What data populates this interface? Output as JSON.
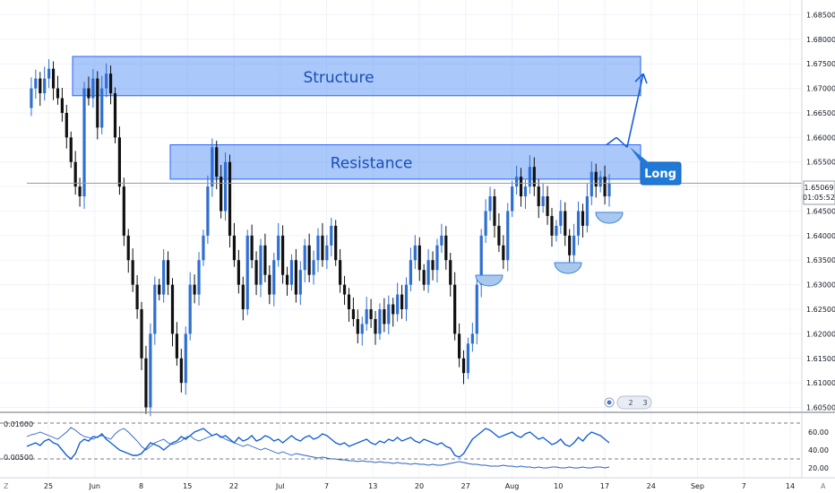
{
  "chart_data": {
    "type": "line",
    "subtype": "candlestick",
    "price_axis": {
      "ticks": [
        "1.68500",
        "1.68000",
        "1.67500",
        "1.67000",
        "1.66500",
        "1.66000",
        "1.65500",
        "1.65000",
        "1.64500",
        "1.64000",
        "1.63500",
        "1.63000",
        "1.62500",
        "1.62000",
        "1.61500",
        "1.61000",
        "1.60500"
      ],
      "range": [
        1.604,
        1.688
      ],
      "current_price": "1.65069",
      "countdown": "01:05:52"
    },
    "time_axis": {
      "ticks": [
        "25",
        "Jun",
        "8",
        "15",
        "22",
        "Jul",
        "7",
        "13",
        "20",
        "27",
        "Aug",
        "10",
        "17",
        "24",
        "Sep",
        "7",
        "14"
      ]
    },
    "zones": [
      {
        "label": "Structure",
        "top": 1.6765,
        "bottom": 1.6685
      },
      {
        "label": "Resistance",
        "top": 1.6585,
        "bottom": 1.6515
      }
    ],
    "callout": {
      "label": "Long"
    },
    "price_path": [
      1.666,
      1.67,
      1.672,
      1.669,
      1.672,
      1.674,
      1.67,
      1.668,
      1.665,
      1.66,
      1.655,
      1.65,
      1.648,
      1.67,
      1.668,
      1.672,
      1.662,
      1.67,
      1.673,
      1.669,
      1.66,
      1.65,
      1.64,
      1.635,
      1.63,
      1.625,
      1.615,
      1.605,
      1.62,
      1.63,
      1.628,
      1.635,
      1.63,
      1.62,
      1.615,
      1.61,
      1.62,
      1.63,
      1.628,
      1.635,
      1.64,
      1.65,
      1.658,
      1.652,
      1.645,
      1.655,
      1.64,
      1.635,
      1.63,
      1.625,
      1.64,
      1.635,
      1.63,
      1.638,
      1.632,
      1.628,
      1.635,
      1.64,
      1.632,
      1.63,
      1.635,
      1.628,
      1.633,
      1.638,
      1.632,
      1.635,
      1.64,
      1.635,
      1.638,
      1.642,
      1.635,
      1.63,
      1.628,
      1.625,
      1.623,
      1.62,
      1.622,
      1.625,
      1.623,
      1.62,
      1.625,
      1.622,
      1.626,
      1.624,
      1.628,
      1.625,
      1.63,
      1.635,
      1.638,
      1.633,
      1.63,
      1.635,
      1.633,
      1.638,
      1.64,
      1.635,
      1.63,
      1.62,
      1.615,
      1.612,
      1.618,
      1.62,
      1.63,
      1.64,
      1.645,
      1.648,
      1.642,
      1.638,
      1.635,
      1.645,
      1.65,
      1.652,
      1.648,
      1.65,
      1.654,
      1.65,
      1.646,
      1.648,
      1.644,
      1.64,
      1.642,
      1.645,
      1.64,
      1.636,
      1.64,
      1.645,
      1.642,
      1.648,
      1.653,
      1.65,
      1.652,
      1.648,
      1.6507
    ],
    "projection": [
      [
        1.6585,
        1.66
      ],
      [
        1.66,
        1.658
      ],
      [
        1.658,
        1.673
      ]
    ],
    "oscillator": {
      "left_ticks": [
        "0.01000",
        "0.00500"
      ],
      "right_ticks": [
        "60.00",
        "40.00",
        "20.00"
      ],
      "levels": [
        70,
        30
      ],
      "range": [
        10,
        80
      ],
      "rsi": [
        44,
        46,
        48,
        45,
        50,
        52,
        48,
        46,
        40,
        34,
        30,
        36,
        48,
        52,
        50,
        55,
        54,
        58,
        52,
        48,
        44,
        40,
        38,
        36,
        34,
        34,
        36,
        42,
        48,
        46,
        44,
        40,
        44,
        48,
        50,
        55,
        52,
        56,
        60,
        62,
        64,
        60,
        56,
        58,
        54,
        56,
        52,
        48,
        54,
        50,
        52,
        56,
        50,
        52,
        56,
        54,
        50,
        52,
        48,
        52,
        56,
        52,
        50,
        54,
        56,
        52,
        54,
        58,
        56,
        52,
        48,
        46,
        48,
        44,
        46,
        48,
        50,
        52,
        48,
        46,
        50,
        48,
        52,
        50,
        54,
        50,
        52,
        54,
        50,
        48,
        52,
        50,
        48,
        46,
        48,
        44,
        42,
        34,
        32,
        36,
        44,
        52,
        56,
        60,
        64,
        62,
        58,
        54,
        56,
        58,
        60,
        56,
        54,
        58,
        60,
        56,
        52,
        54,
        50,
        46,
        48,
        52,
        46,
        44,
        48,
        54,
        50,
        56,
        60,
        58,
        56,
        52,
        48
      ],
      "atr": [
        55,
        57,
        58,
        60,
        58,
        56,
        54,
        52,
        56,
        60,
        65,
        62,
        58,
        55,
        54,
        52,
        55,
        56,
        54,
        52,
        58,
        62,
        64,
        60,
        55,
        50,
        44,
        40,
        44,
        48,
        50,
        52,
        48,
        46,
        48,
        50,
        54,
        56,
        52,
        50,
        52,
        54,
        56,
        58,
        55,
        52,
        50,
        48,
        46,
        44,
        46,
        44,
        42,
        40,
        42,
        40,
        38,
        36,
        38,
        36,
        34,
        36,
        35,
        34,
        33,
        32,
        31,
        32,
        31,
        30,
        30,
        29,
        29,
        28,
        28,
        27,
        28,
        27,
        27,
        26,
        27,
        26,
        26,
        25,
        26,
        25,
        25,
        24,
        25,
        24,
        24,
        23,
        24,
        23,
        23,
        24,
        25,
        26,
        27,
        26,
        25,
        24,
        24,
        23,
        23,
        22,
        22,
        22,
        23,
        22,
        22,
        21,
        22,
        21,
        21,
        20,
        21,
        20,
        20,
        21,
        21,
        20,
        20,
        21,
        20,
        20,
        21,
        20,
        20,
        21,
        21,
        20,
        21
      ]
    }
  },
  "badges": {
    "b1": "2",
    "b2": "3"
  },
  "scale_mode": {
    "left": "Z",
    "right": "A"
  }
}
